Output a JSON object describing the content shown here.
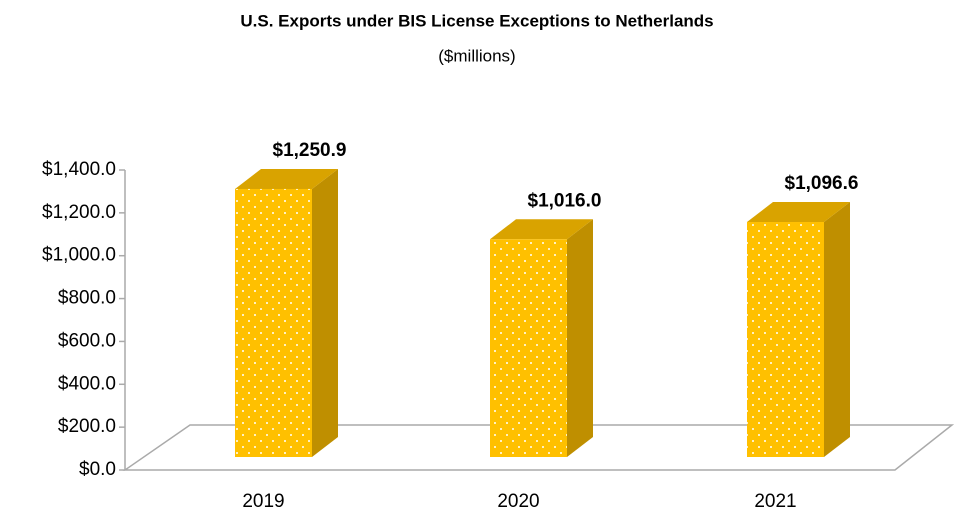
{
  "chart_data": {
    "type": "bar3d",
    "title": "U.S. Exports under BIS License Exceptions to Netherlands",
    "subtitle": "($millions)",
    "categories": [
      "2019",
      "2020",
      "2021"
    ],
    "values": [
      1250.9,
      1016.0,
      1096.6
    ],
    "value_labels": [
      "$1,250.9",
      "$1,016.0",
      "$1,096.6"
    ],
    "color": "#ffc000",
    "ylim": [
      0,
      1400
    ],
    "yticks": [
      {
        "value": 0,
        "label": "$0.0"
      },
      {
        "value": 200,
        "label": "$200.0"
      },
      {
        "value": 400,
        "label": "$400.0"
      },
      {
        "value": 600,
        "label": "$600.0"
      },
      {
        "value": 800,
        "label": "$800.0"
      },
      {
        "value": 1000,
        "label": "$1,000.0"
      },
      {
        "value": 1200,
        "label": "$1,200.0"
      },
      {
        "value": 1400,
        "label": "$1,400.0"
      }
    ]
  }
}
